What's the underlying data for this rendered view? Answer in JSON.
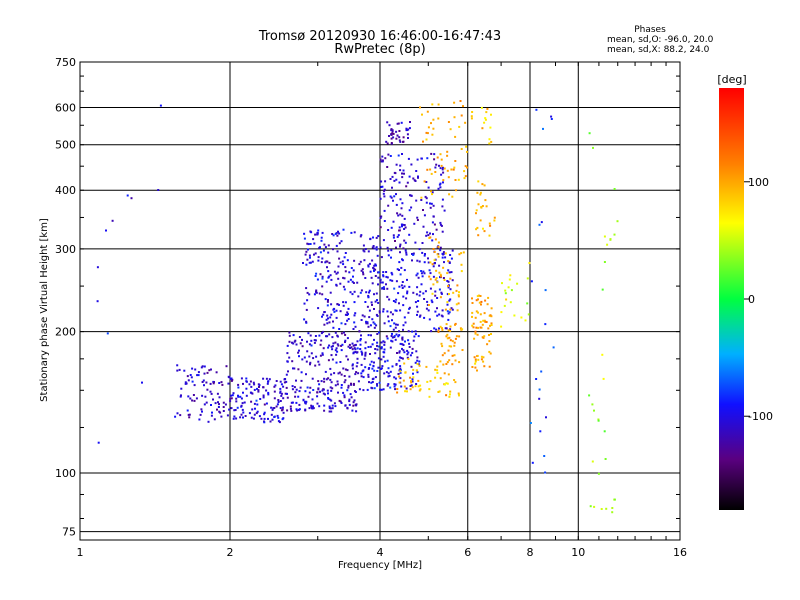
{
  "chart_data": {
    "type": "scatter",
    "title": "Tromsø 20120930 16:46:00-16:47:43",
    "subtitle": "RwPretec (8p)",
    "xlabel": "Frequency [MHz]",
    "ylabel": "Stationary phase Virtual Height [km]",
    "x_scale": "log",
    "y_scale": "log",
    "xlim": [
      1,
      16
    ],
    "ylim": [
      72,
      750
    ],
    "x_ticks": [
      1,
      2,
      4,
      6,
      8,
      10,
      16
    ],
    "y_ticks": [
      75,
      100,
      200,
      300,
      400,
      500,
      600,
      750
    ],
    "grid": true,
    "legend": {
      "title": "Phases",
      "lines": [
        "mean, sd,O: -96.0, 20.0",
        "mean, sd,X:  88.2, 24.0"
      ]
    },
    "colorbar": {
      "label": "[deg]",
      "range": [
        -180,
        180
      ],
      "ticks": [
        100,
        0,
        -100
      ]
    },
    "clusters": [
      {
        "x_range": [
          1.55,
          2.0
        ],
        "y_range": [
          128,
          170
        ],
        "phase_mean": -110,
        "density": 90
      },
      {
        "x_range": [
          2.0,
          2.6
        ],
        "y_range": [
          128,
          160
        ],
        "phase_mean": -105,
        "density": 140
      },
      {
        "x_range": [
          2.6,
          3.6
        ],
        "y_range": [
          135,
          200
        ],
        "phase_mean": -110,
        "density": 260
      },
      {
        "x_range": [
          2.8,
          4.0
        ],
        "y_range": [
          200,
          330
        ],
        "phase_mean": -105,
        "density": 260
      },
      {
        "x_range": [
          3.6,
          4.8
        ],
        "y_range": [
          150,
          200
        ],
        "phase_mean": -100,
        "density": 180
      },
      {
        "x_range": [
          4.0,
          5.6
        ],
        "y_range": [
          200,
          300
        ],
        "phase_mean": -100,
        "density": 200
      },
      {
        "x_range": [
          4.0,
          5.4
        ],
        "y_range": [
          300,
          480
        ],
        "phase_mean": -110,
        "density": 160
      },
      {
        "x_range": [
          4.1,
          4.6
        ],
        "y_range": [
          500,
          560
        ],
        "phase_mean": -115,
        "density": 40
      },
      {
        "x_range": [
          4.3,
          5.8
        ],
        "y_range": [
          145,
          175
        ],
        "phase_mean": 90,
        "density": 60
      },
      {
        "x_range": [
          5.0,
          5.9
        ],
        "y_range": [
          220,
          320
        ],
        "phase_mean": 95,
        "density": 50
      },
      {
        "x_range": [
          5.2,
          5.9
        ],
        "y_range": [
          170,
          210
        ],
        "phase_mean": 100,
        "density": 40
      },
      {
        "x_range": [
          4.8,
          6.0
        ],
        "y_range": [
          380,
          620
        ],
        "phase_mean": 95,
        "density": 60
      },
      {
        "x_range": [
          6.1,
          6.7
        ],
        "y_range": [
          165,
          240
        ],
        "phase_mean": 100,
        "density": 70
      },
      {
        "x_range": [
          6.2,
          6.8
        ],
        "y_range": [
          320,
          420
        ],
        "phase_mean": 90,
        "density": 25
      },
      {
        "x_range": [
          6.1,
          6.8
        ],
        "y_range": [
          500,
          600
        ],
        "phase_mean": 80,
        "density": 15
      },
      {
        "x_range": [
          7.0,
          8.0
        ],
        "y_range": [
          200,
          280
        ],
        "phase_mean": 60,
        "density": 20
      },
      {
        "x_range": [
          8.0,
          9.0
        ],
        "y_range": [
          100,
          600
        ],
        "phase_mean": -80,
        "density": 20
      },
      {
        "x_range": [
          10.5,
          12.0
        ],
        "y_range": [
          80,
          600
        ],
        "phase_mean": 40,
        "density": 30
      },
      {
        "x_range": [
          1.0,
          1.6
        ],
        "y_range": [
          100,
          650
        ],
        "phase_mean": -100,
        "density": 12
      }
    ]
  }
}
